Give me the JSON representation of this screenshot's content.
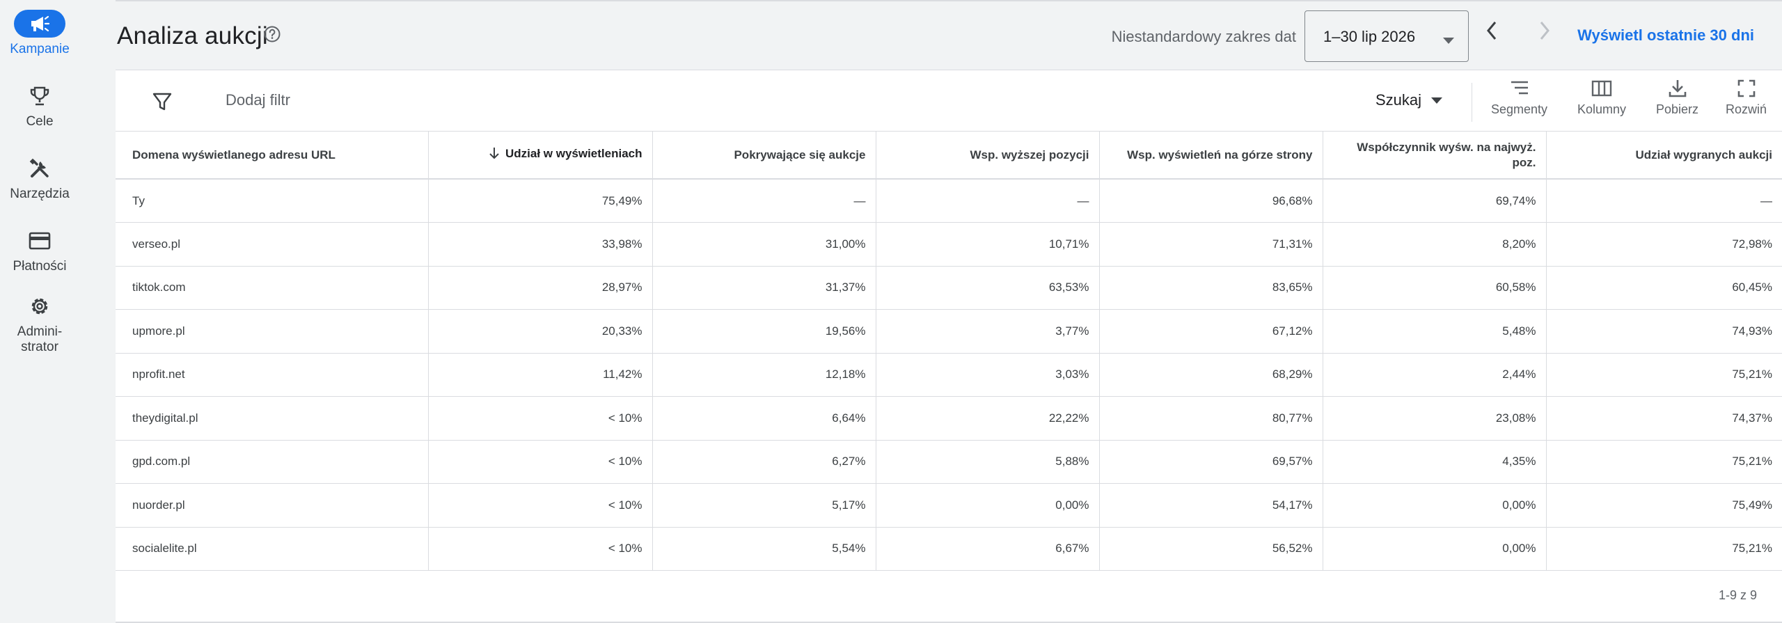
{
  "sidebar": {
    "items": [
      {
        "label": "Kampanie",
        "icon": "megaphone-icon",
        "active": true
      },
      {
        "label": "Cele",
        "icon": "trophy-icon",
        "active": false
      },
      {
        "label": "Narzędzia",
        "icon": "tools-icon",
        "active": false
      },
      {
        "label": "Płatności",
        "icon": "credit-card-icon",
        "active": false
      },
      {
        "label": "Admini-\nstrator",
        "icon": "gear-icon",
        "active": false
      }
    ]
  },
  "header": {
    "title": "Analiza aukcji",
    "date_caption": "Niestandardowy zakres dat",
    "date_value": "1–30 lip 2026",
    "last30_label": "Wyświetl ostatnie 30 dni"
  },
  "toolbar": {
    "add_filter": "Dodaj filtr",
    "search_label": "Szukaj",
    "segments": "Segmenty",
    "columns": "Kolumny",
    "download": "Pobierz",
    "expand": "Rozwiń"
  },
  "table": {
    "headers": [
      "Domena wyświetlanego adresu URL",
      "Udział w wyświetleniach",
      "Pokrywające się aukcje",
      "Wsp. wyższej pozycji",
      "Wsp. wyświetleń na górze strony",
      "Współczynnik wyśw. na najwyż. poz.",
      "Udział wygranych aukcji"
    ],
    "rows": [
      [
        "Ty",
        "75,49%",
        "—",
        "—",
        "96,68%",
        "69,74%",
        "—"
      ],
      [
        "verseo.pl",
        "33,98%",
        "31,00%",
        "10,71%",
        "71,31%",
        "8,20%",
        "72,98%"
      ],
      [
        "tiktok.com",
        "28,97%",
        "31,37%",
        "63,53%",
        "83,65%",
        "60,58%",
        "60,45%"
      ],
      [
        "upmore.pl",
        "20,33%",
        "19,56%",
        "3,77%",
        "67,12%",
        "5,48%",
        "74,93%"
      ],
      [
        "nprofit.net",
        "11,42%",
        "12,18%",
        "3,03%",
        "68,29%",
        "2,44%",
        "75,21%"
      ],
      [
        "theydigital.pl",
        "< 10%",
        "6,64%",
        "22,22%",
        "80,77%",
        "23,08%",
        "74,37%"
      ],
      [
        "gpd.com.pl",
        "< 10%",
        "6,27%",
        "5,88%",
        "69,57%",
        "4,35%",
        "75,21%"
      ],
      [
        "nuorder.pl",
        "< 10%",
        "5,17%",
        "0,00%",
        "54,17%",
        "0,00%",
        "75,49%"
      ],
      [
        "socialelite.pl",
        "< 10%",
        "5,54%",
        "6,67%",
        "56,52%",
        "0,00%",
        "75,21%"
      ]
    ]
  },
  "pager": "1-9 z 9",
  "colors": {
    "accent": "#1a73e8",
    "background": "#f1f3f4",
    "border": "#dadce0"
  }
}
